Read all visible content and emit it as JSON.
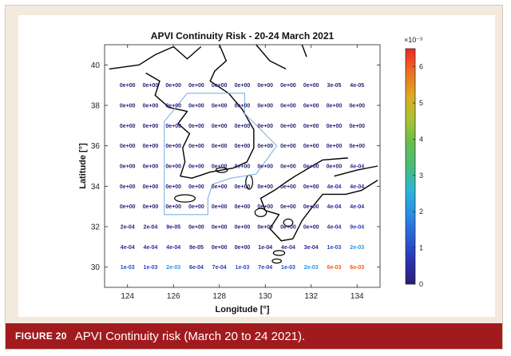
{
  "chart_data": {
    "type": "heatmap",
    "title": "APVI Continuity Risk - 20-24 March 2021",
    "xlabel": "Longitude [°]",
    "ylabel": "Latitude [°]",
    "xlim": [
      123,
      135
    ],
    "ylim": [
      29,
      41
    ],
    "x_ticks": [
      124,
      126,
      128,
      130,
      132,
      134
    ],
    "x_tick_labels": [
      "124",
      "126",
      "128",
      "130",
      "132",
      "134"
    ],
    "y_ticks": [
      30,
      32,
      34,
      36,
      38,
      40
    ],
    "y_tick_labels": [
      "30",
      "32",
      "34",
      "36",
      "38",
      "40"
    ],
    "x": [
      124,
      125,
      126,
      127,
      128,
      129,
      130,
      131,
      132,
      133,
      134
    ],
    "y": [
      39,
      38,
      37,
      36,
      35,
      34,
      33,
      32,
      31,
      30
    ],
    "cell_labels": [
      [
        "0e+00",
        "0e+00",
        "0e+00",
        "0e+00",
        "0e+00",
        "0e+00",
        "0e+00",
        "0e+00",
        "0e+00",
        "3e-05",
        "4e-05"
      ],
      [
        "0e+00",
        "0e+00",
        "0e+00",
        "0e+00",
        "0e+00",
        "0e+00",
        "0e+00",
        "0e+00",
        "0e+00",
        "0e+00",
        "0e+00"
      ],
      [
        "0e+00",
        "0e+00",
        "0e+00",
        "0e+00",
        "0e+00",
        "0e+00",
        "0e+00",
        "0e+00",
        "0e+00",
        "0e+00",
        "0e+00"
      ],
      [
        "0e+00",
        "0e+00",
        "0e+00",
        "0e+00",
        "0e+00",
        "0e+00",
        "0e+00",
        "0e+00",
        "0e+00",
        "0e+00",
        "0e+00"
      ],
      [
        "0e+00",
        "0e+00",
        "0e+00",
        "0e+00",
        "0e+00",
        "0e+00",
        "0e+00",
        "0e+00",
        "0e+00",
        "0e+00",
        "4e-04"
      ],
      [
        "0e+00",
        "0e+00",
        "0e+00",
        "0e+00",
        "0e+00",
        "0e+00",
        "0e+00",
        "0e+00",
        "0e+00",
        "4e-04",
        "4e-04"
      ],
      [
        "0e+00",
        "0e+00",
        "0e+00",
        "0e+00",
        "0e+00",
        "0e+00",
        "0e+00",
        "0e+00",
        "0e+00",
        "4e-04",
        "4e-04"
      ],
      [
        "2e-04",
        "2e-04",
        "9e-05",
        "0e+00",
        "0e+00",
        "0e+00",
        "0e+00",
        "0e+00",
        "0e+00",
        "4e-04",
        "9e-04"
      ],
      [
        "4e-04",
        "4e-04",
        "4e-04",
        "9e-05",
        "0e+00",
        "0e+00",
        "1e-04",
        "4e-04",
        "3e-04",
        "1e-03",
        "2e-03"
      ],
      [
        "1e-03",
        "1e-03",
        "2e-03",
        "6e-04",
        "7e-04",
        "1e-03",
        "7e-04",
        "1e-03",
        "2e-03",
        "6e-03",
        "6e-03"
      ]
    ],
    "values": [
      [
        0,
        0,
        0,
        0,
        0,
        0,
        0,
        0,
        0,
        3e-05,
        4e-05
      ],
      [
        0,
        0,
        0,
        0,
        0,
        0,
        0,
        0,
        0,
        0,
        0
      ],
      [
        0,
        0,
        0,
        0,
        0,
        0,
        0,
        0,
        0,
        0,
        0
      ],
      [
        0,
        0,
        0,
        0,
        0,
        0,
        0,
        0,
        0,
        0,
        0
      ],
      [
        0,
        0,
        0,
        0,
        0,
        0,
        0,
        0,
        0,
        0,
        0.0004
      ],
      [
        0,
        0,
        0,
        0,
        0,
        0,
        0,
        0,
        0,
        0.0004,
        0.0004
      ],
      [
        0,
        0,
        0,
        0,
        0,
        0,
        0,
        0,
        0,
        0.0004,
        0.0004
      ],
      [
        0.0002,
        0.0002,
        9e-05,
        0,
        0,
        0,
        0,
        0,
        0,
        0.0004,
        0.0009
      ],
      [
        0.0004,
        0.0004,
        0.0004,
        9e-05,
        0,
        0,
        0.0001,
        0.0004,
        0.0003,
        0.001,
        0.002
      ],
      [
        0.001,
        0.001,
        0.002,
        0.0006,
        0.0007,
        0.001,
        0.0007,
        0.001,
        0.002,
        0.006,
        0.006
      ]
    ],
    "colorbar": {
      "range": [
        0,
        6.5
      ],
      "ticks": [
        0,
        1,
        2,
        3,
        4,
        5,
        6
      ],
      "tick_labels": [
        "0",
        "1",
        "2",
        "3",
        "4",
        "5",
        "6"
      ],
      "scale_label": "×10⁻³",
      "colormap": "parula"
    },
    "overlays": {
      "coastline_color": "#000000",
      "region_outline_color": "#7fb2e5"
    },
    "grid": false
  },
  "caption": {
    "label": "FIGURE 20",
    "text": "APVI Continuity risk (March 20 to 24 2021)."
  },
  "colors": {
    "caption_bar": "#a11b1e",
    "figure_background": "#f4e9de"
  }
}
